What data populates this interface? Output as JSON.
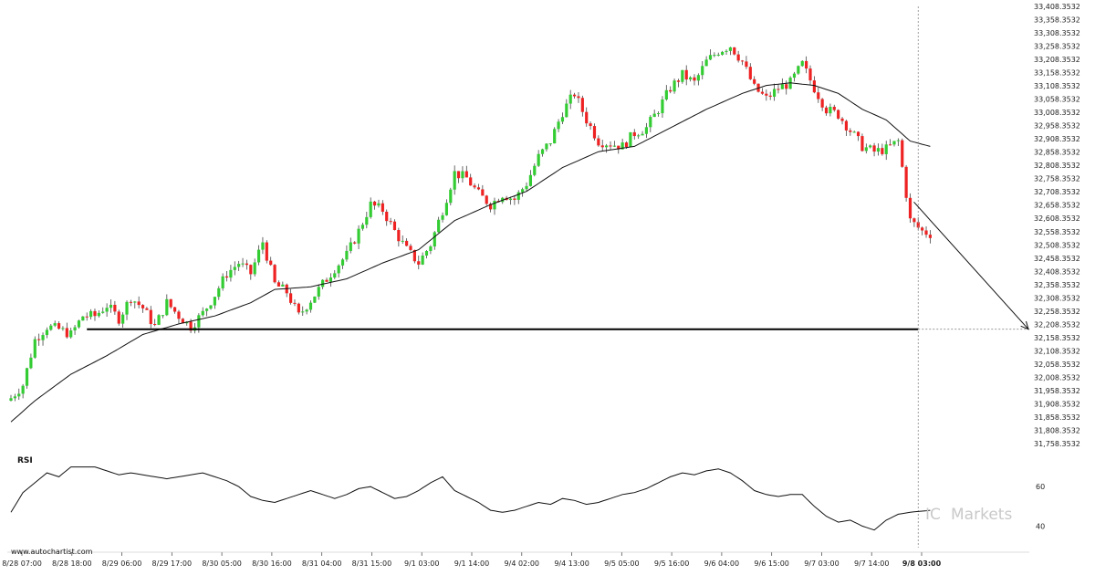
{
  "chart_data": {
    "type": "candlestick",
    "price_axis": {
      "ticks": [
        "33,408.3532",
        "33,358.3532",
        "33,308.3532",
        "33,258.3532",
        "33,208.3532",
        "33,158.3532",
        "33,108.3532",
        "33,058.3532",
        "33,008.3532",
        "32,958.3532",
        "32,908.3532",
        "32,858.3532",
        "32,808.3532",
        "32,758.3532",
        "32,708.3532",
        "32,658.3532",
        "32,608.3532",
        "32,558.3532",
        "32,508.3532",
        "32,458.3532",
        "32,408.3532",
        "32,358.3532",
        "32,308.3532",
        "32,258.3532",
        "32,208.3532",
        "32,158.3532",
        "32,108.3532",
        "32,058.3532",
        "32,008.3532",
        "31,958.3532",
        "31,908.3532",
        "31,858.3532",
        "31,808.3532",
        "31,758.3532"
      ],
      "min": 31758.3532,
      "max": 33408.3532
    },
    "x_axis": {
      "ticks": [
        "8/28 07:00",
        "8/28 18:00",
        "8/29 06:00",
        "8/29 17:00",
        "8/30 05:00",
        "8/30 16:00",
        "8/31 04:00",
        "8/31 15:00",
        "9/1 03:00",
        "9/1 14:00",
        "9/4 02:00",
        "9/4 13:00",
        "9/5 05:00",
        "9/5 16:00",
        "9/6 04:00",
        "9/6 15:00",
        "9/7 03:00",
        "9/7 14:00",
        "9/8 03:00"
      ],
      "bold_tick": "9/8 03:00"
    },
    "price_path": [
      [
        0,
        31930
      ],
      [
        3,
        31980
      ],
      [
        6,
        32150
      ],
      [
        9,
        32200
      ],
      [
        12,
        32190
      ],
      [
        15,
        32170
      ],
      [
        18,
        32240
      ],
      [
        21,
        32240
      ],
      [
        24,
        32280
      ],
      [
        27,
        32230
      ],
      [
        30,
        32310
      ],
      [
        33,
        32270
      ],
      [
        36,
        32200
      ],
      [
        39,
        32290
      ],
      [
        42,
        32240
      ],
      [
        45,
        32200
      ],
      [
        48,
        32250
      ],
      [
        51,
        32320
      ],
      [
        54,
        32400
      ],
      [
        57,
        32440
      ],
      [
        60,
        32400
      ],
      [
        63,
        32520
      ],
      [
        66,
        32360
      ],
      [
        69,
        32330
      ],
      [
        72,
        32240
      ],
      [
        75,
        32300
      ],
      [
        78,
        32360
      ],
      [
        81,
        32420
      ],
      [
        84,
        32470
      ],
      [
        87,
        32560
      ],
      [
        90,
        32660
      ],
      [
        93,
        32640
      ],
      [
        96,
        32560
      ],
      [
        99,
        32490
      ],
      [
        102,
        32440
      ],
      [
        105,
        32510
      ],
      [
        108,
        32640
      ],
      [
        111,
        32780
      ],
      [
        114,
        32760
      ],
      [
        117,
        32700
      ],
      [
        120,
        32660
      ],
      [
        123,
        32700
      ],
      [
        126,
        32680
      ],
      [
        129,
        32740
      ],
      [
        132,
        32840
      ],
      [
        135,
        32900
      ],
      [
        138,
        33010
      ],
      [
        141,
        33080
      ],
      [
        144,
        32980
      ],
      [
        147,
        32900
      ],
      [
        150,
        32890
      ],
      [
        153,
        32880
      ],
      [
        156,
        32930
      ],
      [
        159,
        32950
      ],
      [
        162,
        33020
      ],
      [
        165,
        33100
      ],
      [
        168,
        33150
      ],
      [
        171,
        33120
      ],
      [
        174,
        33200
      ],
      [
        177,
        33240
      ],
      [
        180,
        33260
      ],
      [
        183,
        33200
      ],
      [
        186,
        33100
      ],
      [
        189,
        33060
      ],
      [
        192,
        33100
      ],
      [
        195,
        33120
      ],
      [
        198,
        33190
      ],
      [
        201,
        33100
      ],
      [
        204,
        33020
      ],
      [
        207,
        33000
      ],
      [
        210,
        32940
      ],
      [
        213,
        32880
      ],
      [
        216,
        32860
      ],
      [
        219,
        32870
      ],
      [
        222,
        32900
      ],
      [
        225,
        32600
      ],
      [
        228,
        32560
      ],
      [
        230,
        32550
      ]
    ],
    "ma_path": [
      [
        0,
        31840
      ],
      [
        6,
        31920
      ],
      [
        15,
        32020
      ],
      [
        24,
        32090
      ],
      [
        33,
        32170
      ],
      [
        42,
        32210
      ],
      [
        51,
        32240
      ],
      [
        60,
        32290
      ],
      [
        66,
        32340
      ],
      [
        75,
        32350
      ],
      [
        84,
        32380
      ],
      [
        93,
        32440
      ],
      [
        102,
        32490
      ],
      [
        111,
        32600
      ],
      [
        120,
        32660
      ],
      [
        129,
        32710
      ],
      [
        138,
        32800
      ],
      [
        147,
        32860
      ],
      [
        156,
        32880
      ],
      [
        165,
        32950
      ],
      [
        174,
        33020
      ],
      [
        183,
        33080
      ],
      [
        189,
        33110
      ],
      [
        195,
        33120
      ],
      [
        201,
        33110
      ],
      [
        207,
        33080
      ],
      [
        213,
        33020
      ],
      [
        219,
        32980
      ],
      [
        225,
        32900
      ],
      [
        230,
        32880
      ]
    ],
    "support_level": 32190.0,
    "projection": {
      "from_index": 225,
      "from_price": 32670,
      "to_price": 32190
    },
    "rsi": {
      "label": "RSI",
      "ticks": [
        "60",
        "40"
      ],
      "min": 30,
      "max": 80,
      "values": [
        [
          0,
          47
        ],
        [
          3,
          57
        ],
        [
          6,
          62
        ],
        [
          9,
          67
        ],
        [
          12,
          65
        ],
        [
          15,
          70
        ],
        [
          18,
          70
        ],
        [
          21,
          70
        ],
        [
          24,
          68
        ],
        [
          27,
          66
        ],
        [
          30,
          67
        ],
        [
          33,
          66
        ],
        [
          36,
          65
        ],
        [
          39,
          64
        ],
        [
          42,
          65
        ],
        [
          45,
          66
        ],
        [
          48,
          67
        ],
        [
          51,
          65
        ],
        [
          54,
          63
        ],
        [
          57,
          60
        ],
        [
          60,
          55
        ],
        [
          63,
          53
        ],
        [
          66,
          52
        ],
        [
          69,
          54
        ],
        [
          72,
          56
        ],
        [
          75,
          58
        ],
        [
          78,
          56
        ],
        [
          81,
          54
        ],
        [
          84,
          56
        ],
        [
          87,
          59
        ],
        [
          90,
          60
        ],
        [
          93,
          57
        ],
        [
          96,
          54
        ],
        [
          99,
          55
        ],
        [
          102,
          58
        ],
        [
          105,
          62
        ],
        [
          108,
          65
        ],
        [
          111,
          58
        ],
        [
          114,
          55
        ],
        [
          117,
          52
        ],
        [
          120,
          48
        ],
        [
          123,
          47
        ],
        [
          126,
          48
        ],
        [
          129,
          50
        ],
        [
          132,
          52
        ],
        [
          135,
          51
        ],
        [
          138,
          54
        ],
        [
          141,
          53
        ],
        [
          144,
          51
        ],
        [
          147,
          52
        ],
        [
          150,
          54
        ],
        [
          153,
          56
        ],
        [
          156,
          57
        ],
        [
          159,
          59
        ],
        [
          162,
          62
        ],
        [
          165,
          65
        ],
        [
          168,
          67
        ],
        [
          171,
          66
        ],
        [
          174,
          68
        ],
        [
          177,
          69
        ],
        [
          180,
          67
        ],
        [
          183,
          63
        ],
        [
          186,
          58
        ],
        [
          189,
          56
        ],
        [
          192,
          55
        ],
        [
          195,
          56
        ],
        [
          198,
          56
        ],
        [
          201,
          50
        ],
        [
          204,
          45
        ],
        [
          207,
          42
        ],
        [
          210,
          43
        ],
        [
          213,
          40
        ],
        [
          216,
          38
        ],
        [
          219,
          43
        ],
        [
          222,
          46
        ],
        [
          225,
          47
        ],
        [
          230,
          48
        ]
      ]
    },
    "colors": {
      "up": "#33cc33",
      "down": "#ee2222",
      "wick": "#444444",
      "line": "#111111",
      "support": "#000000",
      "dashed": "#888888"
    }
  },
  "watermark": {
    "prefix": "IC",
    "text": "Markets"
  },
  "credit": "www.autochartist.com"
}
